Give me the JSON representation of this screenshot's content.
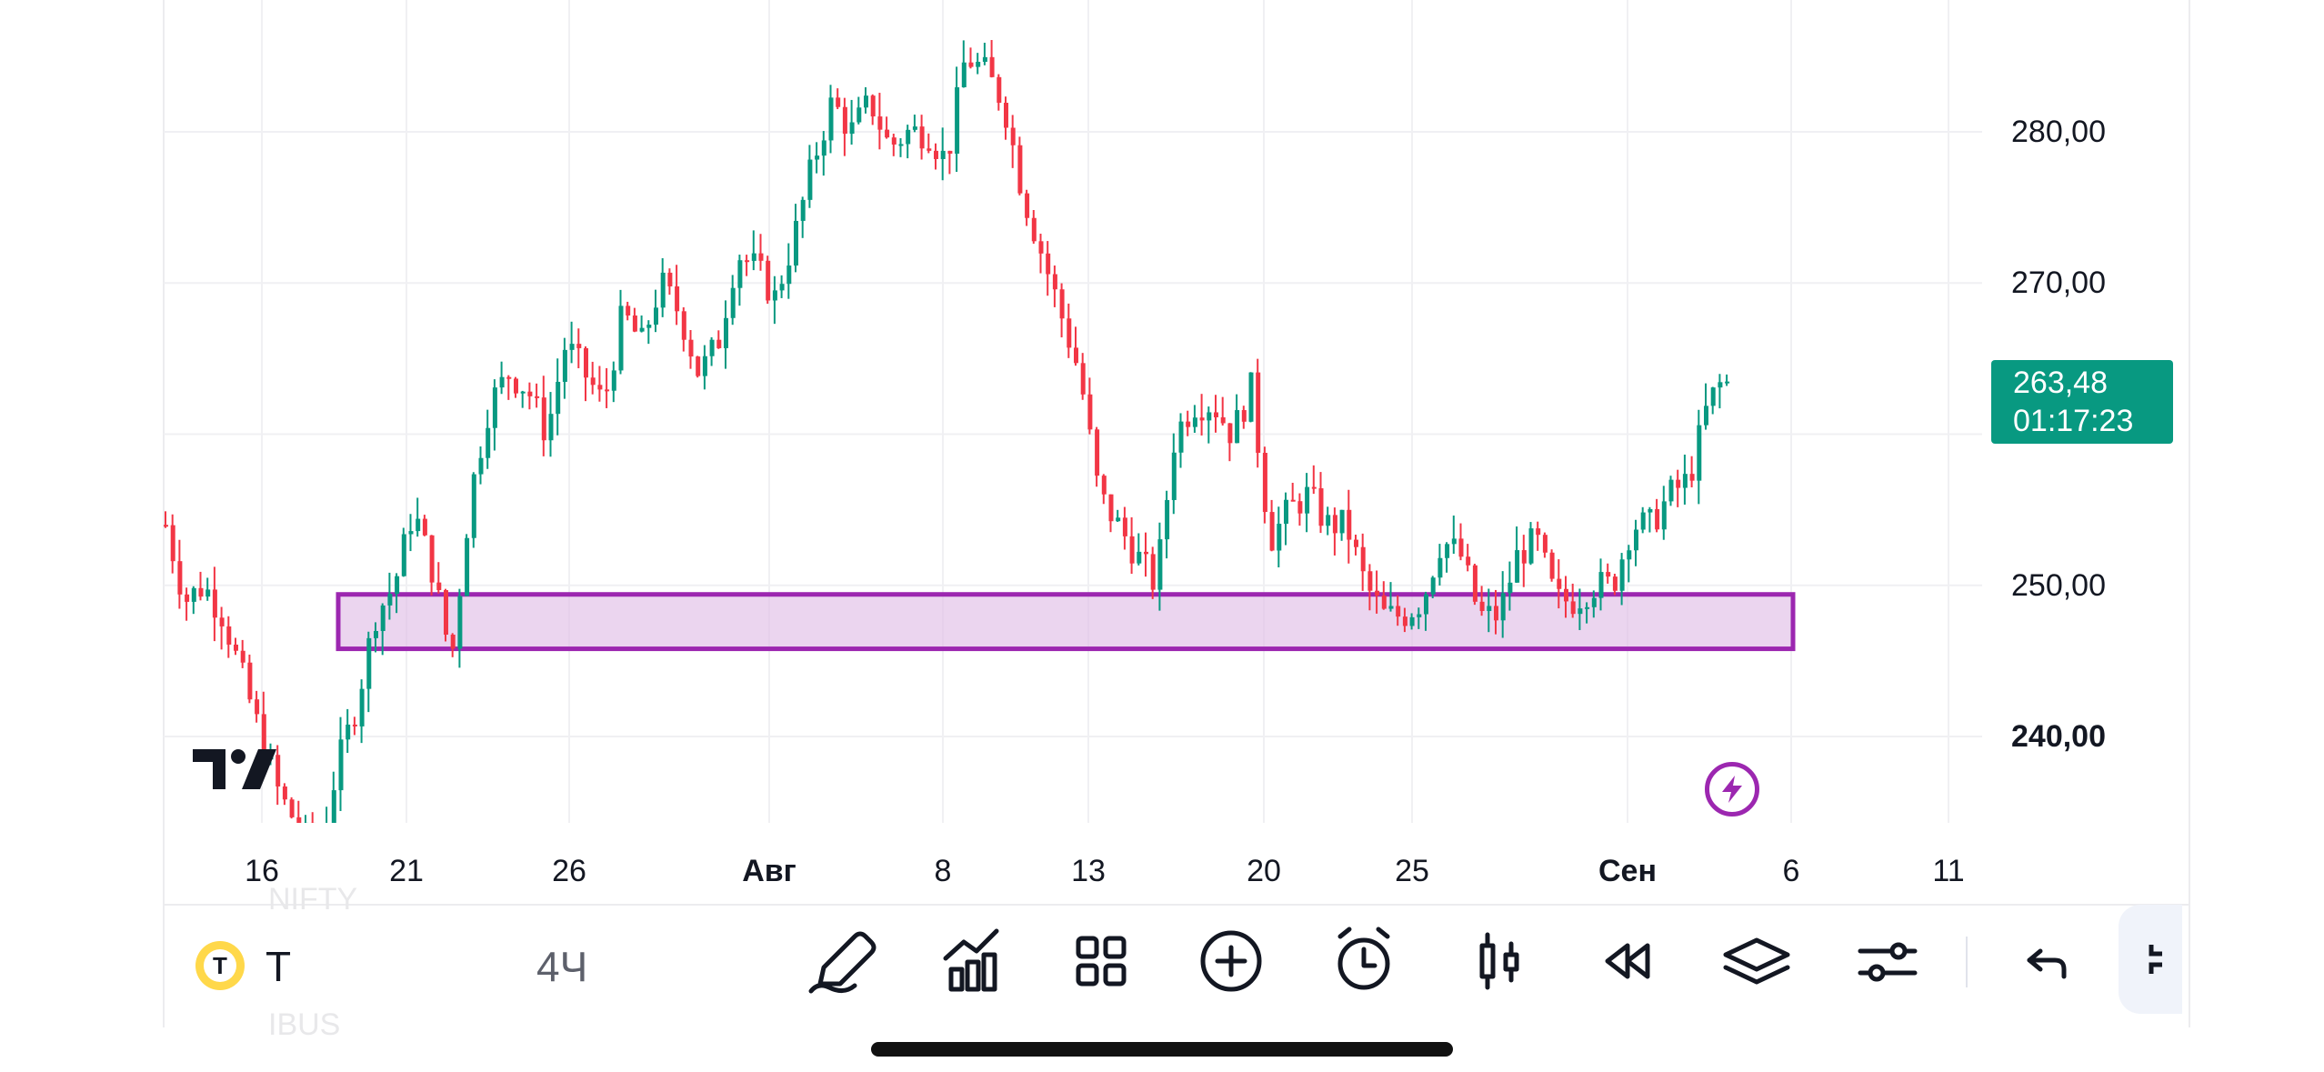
{
  "colors": {
    "up": "#089981",
    "down": "#f23645",
    "grid": "#f0f0f3",
    "zone_stroke": "#9c27b0",
    "zone_fill": "#e1bee7",
    "last_price_bg": "#089981"
  },
  "price_axis": {
    "labels": [
      {
        "text": "280,00",
        "value": 280,
        "bold": false
      },
      {
        "text": "270,00",
        "value": 270,
        "bold": false
      },
      {
        "text": "250,00",
        "value": 250,
        "bold": false
      },
      {
        "text": "240,00",
        "value": 240,
        "bold": true
      }
    ],
    "gridlines": [
      280,
      270,
      260,
      250,
      240
    ]
  },
  "last_price": {
    "price": "263,48",
    "countdown": "01:17:23"
  },
  "time_axis": {
    "labels": [
      {
        "text": "16",
        "bold": false
      },
      {
        "text": "21",
        "bold": false
      },
      {
        "text": "26",
        "bold": false
      },
      {
        "text": "Авг",
        "bold": true
      },
      {
        "text": "8",
        "bold": false
      },
      {
        "text": "13",
        "bold": false
      },
      {
        "text": "20",
        "bold": false
      },
      {
        "text": "25",
        "bold": false
      },
      {
        "text": "Сен",
        "bold": true
      },
      {
        "text": "6",
        "bold": false
      },
      {
        "text": "11",
        "bold": false
      }
    ]
  },
  "chart_data": {
    "type": "candlestick",
    "ylim": [
      235,
      286
    ],
    "x_ticks": [
      "16",
      "21",
      "26",
      "Авг",
      "8",
      "13",
      "20",
      "25",
      "Сен",
      "6",
      "11"
    ],
    "support_zone": {
      "low": 245.8,
      "high": 249.4,
      "from": "19",
      "to": "6"
    },
    "close_path": [
      254,
      249,
      250,
      248,
      244,
      240,
      236,
      234,
      232,
      238,
      242,
      248,
      250,
      255,
      251,
      245,
      256,
      262,
      264,
      263,
      260,
      266,
      264,
      262,
      268,
      266,
      270,
      268,
      264,
      266,
      272,
      271,
      269,
      273,
      278,
      282,
      280,
      282,
      279,
      280,
      280,
      278,
      285,
      284,
      282,
      276,
      272,
      268,
      264,
      256,
      254,
      252,
      250,
      260,
      262,
      262,
      260,
      263,
      253,
      255,
      256,
      254,
      254,
      250,
      248,
      248,
      249,
      253,
      252,
      248,
      248,
      252,
      253,
      249,
      249,
      250,
      250,
      254,
      254,
      256,
      257,
      262,
      264
    ],
    "last": 263.48
  },
  "toolbar": {
    "symbol_badge": "T",
    "symbol": "T",
    "interval": "4Ч",
    "ghost_top": "NIFTY",
    "ghost_bottom": "IBUS",
    "icons": [
      "pencil-icon",
      "indicators-icon",
      "templates-icon",
      "add-icon",
      "alarm-icon",
      "candles-icon",
      "replay-icon",
      "layers-icon",
      "settings-sliders-icon",
      "undo-icon"
    ]
  }
}
